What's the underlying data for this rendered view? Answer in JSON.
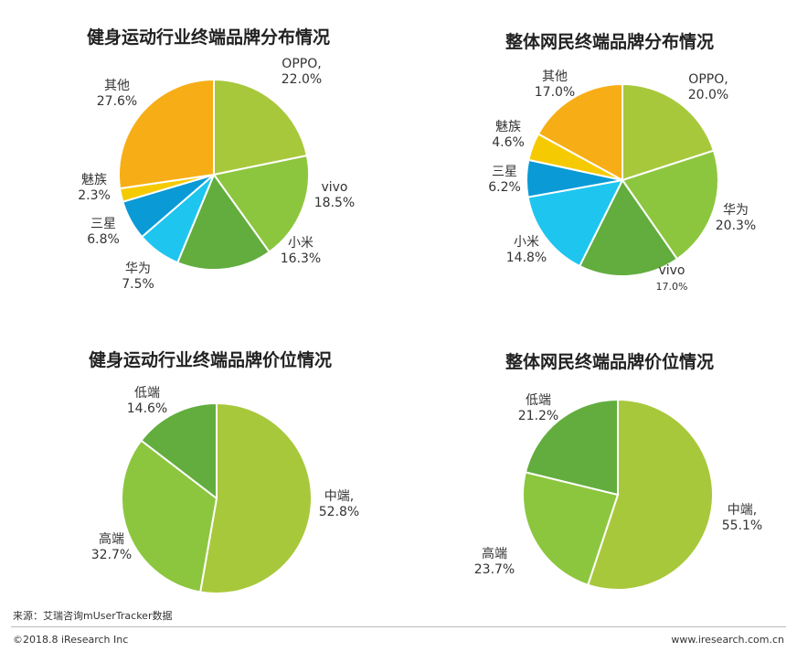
{
  "chart_data": [
    {
      "type": "pie",
      "title": "健身运动行业终端品牌分布情况",
      "slices": [
        {
          "name": "OPPO,",
          "value": 22.0,
          "label": "22.0%",
          "color": "#a8c83c"
        },
        {
          "name": "vivo",
          "value": 18.5,
          "label": "18.5%",
          "color": "#8cc63e"
        },
        {
          "name": "小米",
          "value": 16.3,
          "label": "16.3%",
          "color": "#62ad3e"
        },
        {
          "name": "华为",
          "value": 7.5,
          "label": "7.5%",
          "color": "#1ec6ef"
        },
        {
          "name": "三星",
          "value": 6.8,
          "label": "6.8%",
          "color": "#0a9ad6"
        },
        {
          "name": "魅族",
          "value": 2.3,
          "label": "2.3%",
          "color": "#f6ca00"
        },
        {
          "name": "其他",
          "value": 27.6,
          "label": "27.6%",
          "color": "#f7ae16"
        }
      ]
    },
    {
      "type": "pie",
      "title": "整体网民终端品牌分布情况",
      "slices": [
        {
          "name": "OPPO,",
          "value": 20.0,
          "label": "20.0%",
          "color": "#a8c83c"
        },
        {
          "name": "华为",
          "value": 20.3,
          "label": "20.3%",
          "color": "#8cc63e"
        },
        {
          "name": "vivo",
          "value": 17.0,
          "label": "17.0%",
          "color": "#62ad3e"
        },
        {
          "name": "小米",
          "value": 14.8,
          "label": "14.8%",
          "color": "#1ec6ef"
        },
        {
          "name": "三星",
          "value": 6.2,
          "label": "6.2%",
          "color": "#0a9ad6"
        },
        {
          "name": "魅族",
          "value": 4.6,
          "label": "4.6%",
          "color": "#f6ca00"
        },
        {
          "name": "其他",
          "value": 17.0,
          "label": "17.0%",
          "color": "#f7ae16"
        }
      ]
    },
    {
      "type": "pie",
      "title": "健身运动行业终端品牌价位情况",
      "slices": [
        {
          "name": "中端,",
          "value": 52.8,
          "label": "52.8%",
          "color": "#a8c83c"
        },
        {
          "name": "高端",
          "value": 32.7,
          "label": "32.7%",
          "color": "#8cc63e"
        },
        {
          "name": "低端",
          "value": 14.6,
          "label": "14.6%",
          "color": "#62ad3e"
        }
      ]
    },
    {
      "type": "pie",
      "title": "整体网民终端品牌价位情况",
      "slices": [
        {
          "name": "中端,",
          "value": 55.1,
          "label": "55.1%",
          "color": "#a8c83c"
        },
        {
          "name": "高端",
          "value": 23.7,
          "label": "23.7%",
          "color": "#8cc63e"
        },
        {
          "name": "低端",
          "value": 21.2,
          "label": "21.2%",
          "color": "#62ad3e"
        }
      ]
    }
  ],
  "footer": {
    "source": "来源：艾瑞咨询mUserTracker数据",
    "copyright": "©2018.8 iResearch Inc",
    "url": "www.iresearch.com.cn"
  }
}
